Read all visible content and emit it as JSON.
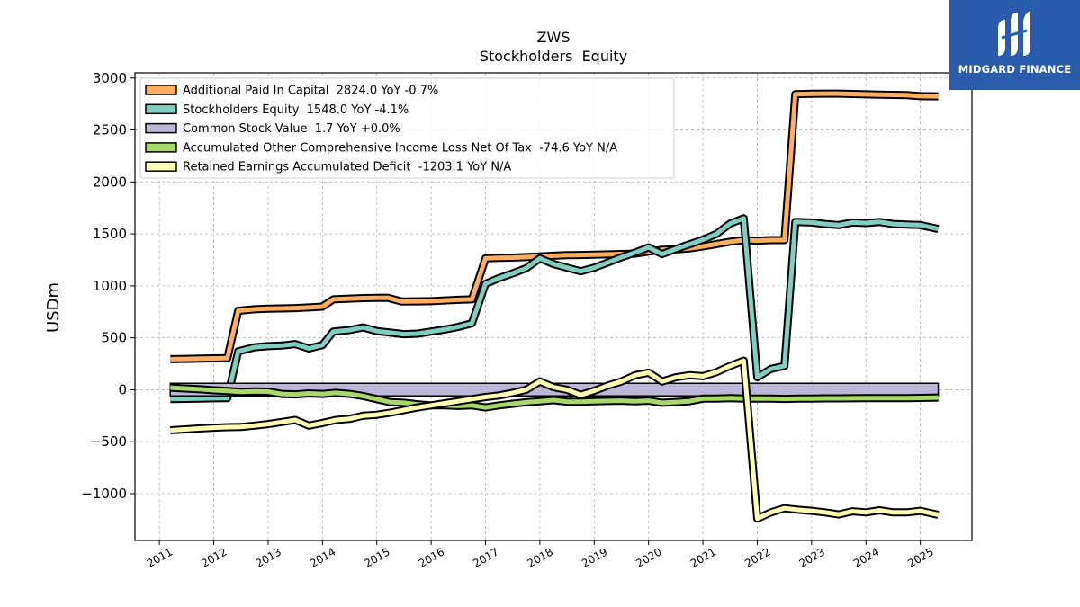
{
  "brand": {
    "name": "MIDGARD FINANCE",
    "bg_color": "#2a5bad"
  },
  "chart_data": {
    "type": "line",
    "title": "ZWS",
    "subtitle": "Stockholders  Equity",
    "ylabel": "USDm",
    "xlabel": "",
    "ylim": [
      -1450,
      3050
    ],
    "xlim": [
      2010.55,
      2025.95
    ],
    "yticks": [
      -1000,
      -500,
      0,
      500,
      1000,
      1500,
      2000,
      2500,
      3000
    ],
    "ytick_labels": [
      "−1000",
      "−500",
      "0",
      "500",
      "1000",
      "1500",
      "2000",
      "2500",
      "3000"
    ],
    "xticks": [
      2011,
      2012,
      2013,
      2014,
      2015,
      2016,
      2017,
      2018,
      2019,
      2020,
      2021,
      2022,
      2023,
      2024,
      2025
    ],
    "xtick_labels": [
      "2011",
      "2012",
      "2013",
      "2014",
      "2015",
      "2016",
      "2017",
      "2018",
      "2019",
      "2020",
      "2021",
      "2022",
      "2023",
      "2024",
      "2025"
    ],
    "grid": true,
    "legend_position": "top-left",
    "series": [
      {
        "name": "Additional Paid In Capital  2824.0 YoY -0.7%",
        "color": "#fdae61",
        "points": [
          [
            2011.2,
            295
          ],
          [
            2011.5,
            297
          ],
          [
            2011.75,
            300
          ],
          [
            2012.0,
            302
          ],
          [
            2012.25,
            305
          ],
          [
            2012.45,
            760
          ],
          [
            2012.75,
            775
          ],
          [
            2013.0,
            780
          ],
          [
            2013.25,
            783
          ],
          [
            2013.5,
            786
          ],
          [
            2013.75,
            792
          ],
          [
            2014.0,
            800
          ],
          [
            2014.2,
            870
          ],
          [
            2014.5,
            877
          ],
          [
            2014.75,
            882
          ],
          [
            2015.0,
            884
          ],
          [
            2015.2,
            886
          ],
          [
            2015.45,
            850
          ],
          [
            2015.75,
            851
          ],
          [
            2016.0,
            853
          ],
          [
            2016.25,
            860
          ],
          [
            2016.5,
            866
          ],
          [
            2016.75,
            870
          ],
          [
            2017.0,
            1265
          ],
          [
            2017.25,
            1270
          ],
          [
            2017.5,
            1272
          ],
          [
            2017.75,
            1277
          ],
          [
            2018.0,
            1283
          ],
          [
            2018.25,
            1290
          ],
          [
            2018.5,
            1295
          ],
          [
            2018.75,
            1297
          ],
          [
            2019.0,
            1300
          ],
          [
            2019.25,
            1303
          ],
          [
            2019.5,
            1306
          ],
          [
            2019.75,
            1310
          ],
          [
            2020.0,
            1330
          ],
          [
            2020.25,
            1348
          ],
          [
            2020.5,
            1350
          ],
          [
            2020.75,
            1360
          ],
          [
            2021.0,
            1380
          ],
          [
            2021.25,
            1402
          ],
          [
            2021.5,
            1425
          ],
          [
            2021.75,
            1440
          ],
          [
            2022.0,
            1435
          ],
          [
            2022.25,
            1440
          ],
          [
            2022.5,
            1440
          ],
          [
            2022.7,
            2845
          ],
          [
            2023.0,
            2848
          ],
          [
            2023.25,
            2850
          ],
          [
            2023.5,
            2850
          ],
          [
            2023.75,
            2847
          ],
          [
            2024.0,
            2843
          ],
          [
            2024.25,
            2840
          ],
          [
            2024.5,
            2838
          ],
          [
            2024.75,
            2835
          ],
          [
            2025.0,
            2826
          ],
          [
            2025.33,
            2824
          ]
        ]
      },
      {
        "name": "Stockholders Equity  1548.0 YoY -4.1%",
        "color": "#80cdc1",
        "points": [
          [
            2011.2,
            -90
          ],
          [
            2011.5,
            -87
          ],
          [
            2011.75,
            -85
          ],
          [
            2012.0,
            -82
          ],
          [
            2012.25,
            -80
          ],
          [
            2012.45,
            370
          ],
          [
            2012.75,
            410
          ],
          [
            2013.0,
            420
          ],
          [
            2013.25,
            425
          ],
          [
            2013.5,
            440
          ],
          [
            2013.75,
            398
          ],
          [
            2014.0,
            430
          ],
          [
            2014.2,
            560
          ],
          [
            2014.5,
            575
          ],
          [
            2014.75,
            600
          ],
          [
            2015.0,
            565
          ],
          [
            2015.25,
            550
          ],
          [
            2015.5,
            535
          ],
          [
            2015.75,
            540
          ],
          [
            2016.0,
            560
          ],
          [
            2016.25,
            580
          ],
          [
            2016.5,
            605
          ],
          [
            2016.75,
            640
          ],
          [
            2017.0,
            1020
          ],
          [
            2017.25,
            1075
          ],
          [
            2017.5,
            1120
          ],
          [
            2017.75,
            1170
          ],
          [
            2018.0,
            1265
          ],
          [
            2018.25,
            1210
          ],
          [
            2018.5,
            1175
          ],
          [
            2018.75,
            1140
          ],
          [
            2019.0,
            1175
          ],
          [
            2019.25,
            1225
          ],
          [
            2019.5,
            1275
          ],
          [
            2019.75,
            1320
          ],
          [
            2020.0,
            1370
          ],
          [
            2020.25,
            1305
          ],
          [
            2020.5,
            1355
          ],
          [
            2020.75,
            1400
          ],
          [
            2021.0,
            1445
          ],
          [
            2021.25,
            1500
          ],
          [
            2021.5,
            1600
          ],
          [
            2021.75,
            1650
          ],
          [
            2022.0,
            120
          ],
          [
            2022.25,
            200
          ],
          [
            2022.5,
            230
          ],
          [
            2022.7,
            1615
          ],
          [
            2023.0,
            1610
          ],
          [
            2023.25,
            1595
          ],
          [
            2023.5,
            1585
          ],
          [
            2023.75,
            1610
          ],
          [
            2024.0,
            1605
          ],
          [
            2024.25,
            1615
          ],
          [
            2024.5,
            1595
          ],
          [
            2024.75,
            1590
          ],
          [
            2025.0,
            1585
          ],
          [
            2025.33,
            1548
          ]
        ]
      },
      {
        "name": "Common Stock Value  1.7 YoY +0.0%",
        "color": "#bcb7d9",
        "points": [
          [
            2011.2,
            1.7
          ],
          [
            2025.33,
            1.7
          ]
        ]
      },
      {
        "name": "Accumulated Other Comprehensive Income Loss Net Of Tax  -74.6 YoY N/A",
        "color": "#a6d96a",
        "points": [
          [
            2011.2,
            20
          ],
          [
            2011.5,
            12
          ],
          [
            2011.75,
            5
          ],
          [
            2012.0,
            -5
          ],
          [
            2012.25,
            -12
          ],
          [
            2012.5,
            -20
          ],
          [
            2012.75,
            -15
          ],
          [
            2013.0,
            -18
          ],
          [
            2013.25,
            -40
          ],
          [
            2013.5,
            -45
          ],
          [
            2013.75,
            -35
          ],
          [
            2014.0,
            -40
          ],
          [
            2014.25,
            -30
          ],
          [
            2014.5,
            -40
          ],
          [
            2014.75,
            -60
          ],
          [
            2015.0,
            -90
          ],
          [
            2015.25,
            -120
          ],
          [
            2015.5,
            -125
          ],
          [
            2015.75,
            -140
          ],
          [
            2016.0,
            -150
          ],
          [
            2016.25,
            -150
          ],
          [
            2016.5,
            -155
          ],
          [
            2016.75,
            -150
          ],
          [
            2017.0,
            -170
          ],
          [
            2017.25,
            -150
          ],
          [
            2017.5,
            -135
          ],
          [
            2017.75,
            -120
          ],
          [
            2018.0,
            -110
          ],
          [
            2018.25,
            -100
          ],
          [
            2018.5,
            -115
          ],
          [
            2018.75,
            -115
          ],
          [
            2019.0,
            -110
          ],
          [
            2019.25,
            -108
          ],
          [
            2019.5,
            -105
          ],
          [
            2019.75,
            -110
          ],
          [
            2020.0,
            -105
          ],
          [
            2020.25,
            -125
          ],
          [
            2020.5,
            -118
          ],
          [
            2020.75,
            -110
          ],
          [
            2021.0,
            -85
          ],
          [
            2021.25,
            -85
          ],
          [
            2021.5,
            -80
          ],
          [
            2021.75,
            -85
          ],
          [
            2022.0,
            -85
          ],
          [
            2022.25,
            -85
          ],
          [
            2022.5,
            -88
          ],
          [
            2022.75,
            -85
          ],
          [
            2023.0,
            -84
          ],
          [
            2023.25,
            -83
          ],
          [
            2023.5,
            -83
          ],
          [
            2023.75,
            -82
          ],
          [
            2024.0,
            -80
          ],
          [
            2024.25,
            -80
          ],
          [
            2024.5,
            -80
          ],
          [
            2024.75,
            -80
          ],
          [
            2025.0,
            -78
          ],
          [
            2025.33,
            -74.6
          ]
        ]
      },
      {
        "name": "Retained Earnings Accumulated Deficit  -1203.1 YoY N/A",
        "color": "#ffffb2",
        "points": [
          [
            2011.2,
            -390
          ],
          [
            2011.5,
            -380
          ],
          [
            2011.75,
            -372
          ],
          [
            2012.0,
            -365
          ],
          [
            2012.25,
            -360
          ],
          [
            2012.5,
            -358
          ],
          [
            2012.75,
            -345
          ],
          [
            2013.0,
            -330
          ],
          [
            2013.25,
            -310
          ],
          [
            2013.5,
            -290
          ],
          [
            2013.75,
            -345
          ],
          [
            2014.0,
            -320
          ],
          [
            2014.25,
            -290
          ],
          [
            2014.5,
            -280
          ],
          [
            2014.75,
            -250
          ],
          [
            2015.0,
            -240
          ],
          [
            2015.25,
            -220
          ],
          [
            2015.5,
            -195
          ],
          [
            2015.75,
            -170
          ],
          [
            2016.0,
            -150
          ],
          [
            2016.25,
            -130
          ],
          [
            2016.5,
            -110
          ],
          [
            2016.75,
            -90
          ],
          [
            2017.0,
            -70
          ],
          [
            2017.25,
            -55
          ],
          [
            2017.5,
            -30
          ],
          [
            2017.75,
            0
          ],
          [
            2018.0,
            80
          ],
          [
            2018.25,
            25
          ],
          [
            2018.5,
            0
          ],
          [
            2018.75,
            -50
          ],
          [
            2019.0,
            -10
          ],
          [
            2019.25,
            40
          ],
          [
            2019.5,
            80
          ],
          [
            2019.75,
            140
          ],
          [
            2020.0,
            165
          ],
          [
            2020.25,
            80
          ],
          [
            2020.5,
            120
          ],
          [
            2020.75,
            140
          ],
          [
            2021.0,
            130
          ],
          [
            2021.25,
            170
          ],
          [
            2021.5,
            230
          ],
          [
            2021.75,
            280
          ],
          [
            2022.0,
            -1240
          ],
          [
            2022.25,
            -1180
          ],
          [
            2022.5,
            -1140
          ],
          [
            2022.75,
            -1155
          ],
          [
            2023.0,
            -1165
          ],
          [
            2023.25,
            -1180
          ],
          [
            2023.5,
            -1200
          ],
          [
            2023.75,
            -1170
          ],
          [
            2024.0,
            -1180
          ],
          [
            2024.25,
            -1160
          ],
          [
            2024.5,
            -1180
          ],
          [
            2024.75,
            -1180
          ],
          [
            2025.0,
            -1165
          ],
          [
            2025.33,
            -1203.1
          ]
        ]
      }
    ]
  }
}
